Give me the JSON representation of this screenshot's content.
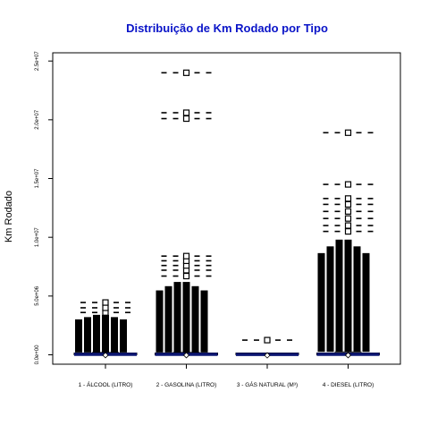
{
  "chart_data": {
    "type": "box",
    "title": "Distribuição de Km Rodado por Tipo",
    "xlabel": "",
    "ylabel": "Km Rodado",
    "ylim": [
      -800000,
      25700000
    ],
    "y_ticks": [
      {
        "value": 0,
        "label": "0.0e+00"
      },
      {
        "value": 5000000,
        "label": "5.0e+06"
      },
      {
        "value": 10000000,
        "label": "1.0e+07"
      },
      {
        "value": 15000000,
        "label": "1.5e+07"
      },
      {
        "value": 20000000,
        "label": "2.0e+07"
      },
      {
        "value": 25000000,
        "label": "2.5e+07"
      }
    ],
    "grid": false,
    "legend": "none",
    "colors": {
      "title": "#0a14c8",
      "median": "#0b1672",
      "box": "#000000",
      "axis": "#000000"
    },
    "categories": [
      "1 - ÁLCOOL (LITRO)",
      "2 - GASOLINA (LITRO)",
      "3 - GÁS NATURAL (M³)",
      "4 - DIESEL (LITRO)"
    ],
    "series": [
      {
        "category": "1 - ÁLCOOL (LITRO)",
        "q1": 0,
        "median": 40000,
        "q3": 110000,
        "whisker_low": 0,
        "whisker_high": 200000,
        "outlier_dense_top": 3400000,
        "outliers": [
          3600000,
          4000000,
          4450000
        ]
      },
      {
        "category": "2 - GASOLINA (LITRO)",
        "q1": 0,
        "median": 40000,
        "q3": 110000,
        "whisker_low": 0,
        "whisker_high": 200000,
        "outlier_dense_top": 6200000,
        "outliers": [
          6700000,
          7200000,
          7600000,
          8000000,
          8400000,
          20100000,
          20600000,
          24000000
        ]
      },
      {
        "category": "3 - GÁS NATURAL (M³)",
        "q1": 0,
        "median": 30000,
        "q3": 80000,
        "whisker_low": 0,
        "whisker_high": 150000,
        "outlier_dense_top": 0,
        "outliers": [
          1250000
        ]
      },
      {
        "category": "4 - DIESEL (LITRO)",
        "q1": 0,
        "median": 40000,
        "q3": 120000,
        "whisker_low": 0,
        "whisker_high": 250000,
        "outlier_dense_top": 9800000,
        "outliers": [
          10500000,
          11000000,
          11600000,
          12200000,
          12800000,
          13300000,
          14500000,
          18900000
        ]
      }
    ]
  }
}
